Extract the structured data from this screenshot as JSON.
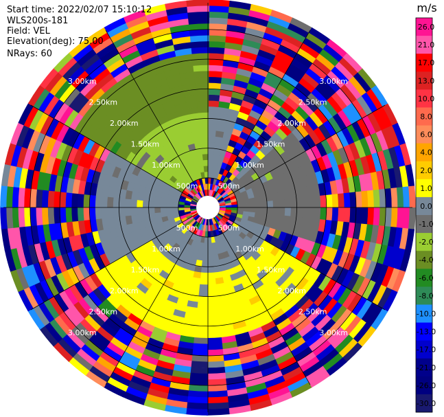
{
  "header": {
    "start_time": "Start time: 2022/02/07 15:10:12",
    "instrument": "WLS200s-181",
    "field": "Field: VEL",
    "elevation": "Elevation(deg): 75.00",
    "nrays": "NRays: 60"
  },
  "chart_data": {
    "type": "heatmap",
    "projection": "polar-ppi",
    "title": "",
    "field": "VEL",
    "units": "m/s",
    "n_rays": 60,
    "elevation_deg": 75.0,
    "range_rings_km": [
      0.5,
      1.0,
      1.5,
      2.0,
      2.5,
      3.0
    ],
    "range_ring_labels": [
      "500m",
      "1.00km",
      "1.50km",
      "2.00km",
      "2.50km",
      "3.00km"
    ],
    "max_range_km": 3.45,
    "gate_spacing_km": 0.1,
    "blind_radius_km": 0.1,
    "radial_spokes_deg": [
      0,
      30,
      60,
      90,
      120,
      150,
      180,
      210,
      240,
      270,
      300,
      330
    ],
    "colorbar": {
      "tick_labels": [
        "26.0",
        "21.0",
        "17.0",
        "13.0",
        "10.0",
        "8.0",
        "6.0",
        "4.0",
        "2.0",
        "1.0",
        "0.0",
        "-1.0",
        "-2.0",
        "-4.0",
        "-6.0",
        "-8.0",
        "-10.0",
        "-13.0",
        "-17.0",
        "-21.0",
        "-26.0",
        "-30.0"
      ],
      "bands": [
        {
          "min": 26,
          "max": 30,
          "color": "#ff1493"
        },
        {
          "min": 21,
          "max": 26,
          "color": "#ff55aa"
        },
        {
          "min": 17,
          "max": 21,
          "color": "#ff0000"
        },
        {
          "min": 13,
          "max": 17,
          "color": "#dd2222"
        },
        {
          "min": 10,
          "max": 13,
          "color": "#ff3344"
        },
        {
          "min": 8,
          "max": 10,
          "color": "#ff6a4d"
        },
        {
          "min": 6,
          "max": 8,
          "color": "#ff8c5a"
        },
        {
          "min": 4,
          "max": 6,
          "color": "#ffa500"
        },
        {
          "min": 2,
          "max": 4,
          "color": "#ffcc00"
        },
        {
          "min": 1,
          "max": 2,
          "color": "#ffff00"
        },
        {
          "min": 0,
          "max": 1,
          "color": "#778899"
        },
        {
          "min": -1,
          "max": 0,
          "color": "#6e6e6e"
        },
        {
          "min": -2,
          "max": -1,
          "color": "#9acd32"
        },
        {
          "min": -4,
          "max": -2,
          "color": "#6b8e23"
        },
        {
          "min": -6,
          "max": -4,
          "color": "#228b22"
        },
        {
          "min": -8,
          "max": -6,
          "color": "#2e8b57"
        },
        {
          "min": -10,
          "max": -8,
          "color": "#1e90ff"
        },
        {
          "min": -13,
          "max": -10,
          "color": "#0000ff"
        },
        {
          "min": -17,
          "max": -13,
          "color": "#0000cd"
        },
        {
          "min": -21,
          "max": -17,
          "color": "#00008b"
        },
        {
          "min": -26,
          "max": -21,
          "color": "#000080"
        },
        {
          "min": -30,
          "max": -26,
          "color": "#191970"
        }
      ]
    },
    "sectors": [
      {
        "azimuth_from_deg": 300,
        "azimuth_to_deg": 360,
        "range_from_km": 0.5,
        "range_to_km": 1.6,
        "value": -1.5
      },
      {
        "azimuth_from_deg": 300,
        "azimuth_to_deg": 360,
        "range_from_km": 1.6,
        "range_to_km": 2.6,
        "value": -3.0
      },
      {
        "azimuth_from_deg": 0,
        "azimuth_to_deg": 50,
        "range_from_km": 0.5,
        "range_to_km": 1.7,
        "value": 0.3
      },
      {
        "azimuth_from_deg": 50,
        "azimuth_to_deg": 110,
        "range_from_km": 0.5,
        "range_to_km": 1.9,
        "value": -0.5
      },
      {
        "azimuth_from_deg": 110,
        "azimuth_to_deg": 260,
        "range_from_km": 0.5,
        "range_to_km": 1.1,
        "value": 0.5
      },
      {
        "azimuth_from_deg": 120,
        "azimuth_to_deg": 240,
        "range_from_km": 1.1,
        "range_to_km": 2.2,
        "value": 1.5
      },
      {
        "azimuth_from_deg": 240,
        "azimuth_to_deg": 300,
        "range_from_km": 0.5,
        "range_to_km": 1.9,
        "value": 0.2
      },
      {
        "azimuth_from_deg": 0,
        "azimuth_to_deg": 360,
        "range_from_km": 2.0,
        "range_to_km": 3.45,
        "value": "mixed"
      }
    ]
  }
}
